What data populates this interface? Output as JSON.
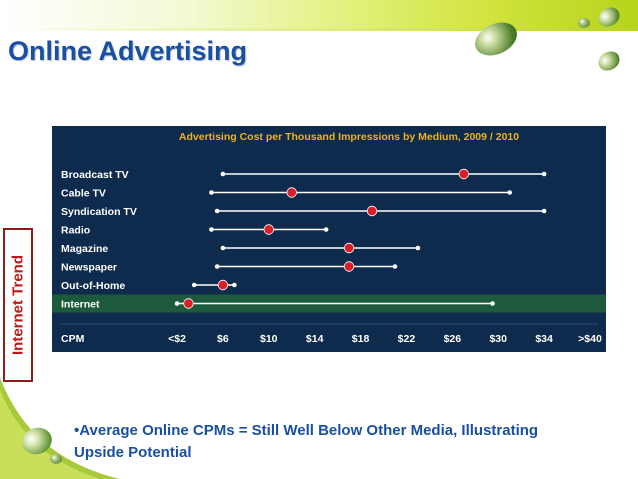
{
  "slide": {
    "title": "Online Advertising",
    "side_label": "Internet Trend",
    "bullet": "•Average Online CPMs = Still Well Below Other Media, Illustrating Upside Potential"
  },
  "colors": {
    "panel_bg": "#0e2a4d",
    "title_text": "#1b4fa0",
    "chart_title": "#f0b21a",
    "row_label": "#ffffff",
    "range_line": "#ffffff",
    "point": "#d8202a",
    "highlight_row": "#1d5a3c",
    "side_label_text": "#c0171a"
  },
  "chart_data": {
    "type": "range-dot",
    "title": "Advertising Cost per Thousand Impressions by Medium, 2009 / 2010",
    "xlabel": "CPM",
    "x_ticks": [
      "<$2",
      "$6",
      "$10",
      "$14",
      "$18",
      "$22",
      "$26",
      "$30",
      "$34",
      ">$40"
    ],
    "x_tick_values": [
      2,
      6,
      10,
      14,
      18,
      22,
      26,
      30,
      34,
      38
    ],
    "xlim": [
      2,
      38
    ],
    "highlighted": "Internet",
    "rows": [
      {
        "label": "Broadcast TV",
        "min": 6,
        "max": 34,
        "point": 27
      },
      {
        "label": "Cable TV",
        "min": 5,
        "max": 31,
        "point": 12
      },
      {
        "label": "Syndication TV",
        "min": 5.5,
        "max": 34,
        "point": 19
      },
      {
        "label": "Radio",
        "min": 5,
        "max": 15,
        "point": 10
      },
      {
        "label": "Magazine",
        "min": 6,
        "max": 23,
        "point": 17
      },
      {
        "label": "Newspaper",
        "min": 5.5,
        "max": 21,
        "point": 17
      },
      {
        "label": "Out-of-Home",
        "min": 3.5,
        "max": 7,
        "point": 6
      },
      {
        "label": "Internet",
        "min": 2,
        "max": 29.5,
        "point": 3
      }
    ]
  }
}
